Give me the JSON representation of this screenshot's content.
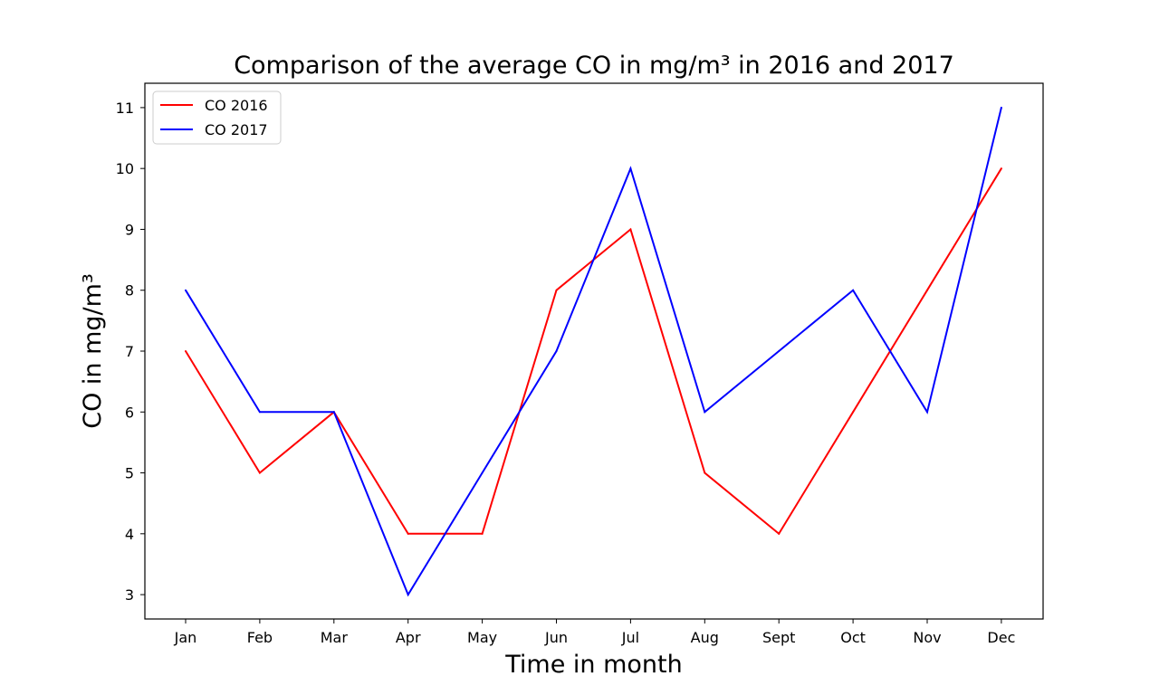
{
  "chart_data": {
    "type": "line",
    "title": "Comparison of the average CO in mg/m³ in 2016 and 2017",
    "xlabel": "Time in month",
    "ylabel": "CO in mg/m³",
    "categories": [
      "Jan",
      "Feb",
      "Mar",
      "Apr",
      "May",
      "Jun",
      "Jul",
      "Aug",
      "Sept",
      "Oct",
      "Nov",
      "Dec"
    ],
    "ylim": [
      2.6,
      11.4
    ],
    "yticks": [
      3,
      4,
      5,
      6,
      7,
      8,
      9,
      10,
      11
    ],
    "grid": false,
    "legend_position": "top-left",
    "series": [
      {
        "name": "CO 2016",
        "color": "#ff0000",
        "values": [
          7,
          5,
          6,
          4,
          4,
          8,
          9,
          5,
          4,
          6,
          8,
          10
        ]
      },
      {
        "name": "CO 2017",
        "color": "#0000ff",
        "values": [
          8,
          6,
          6,
          3,
          5,
          7,
          10,
          6,
          7,
          8,
          6,
          11
        ]
      }
    ]
  }
}
